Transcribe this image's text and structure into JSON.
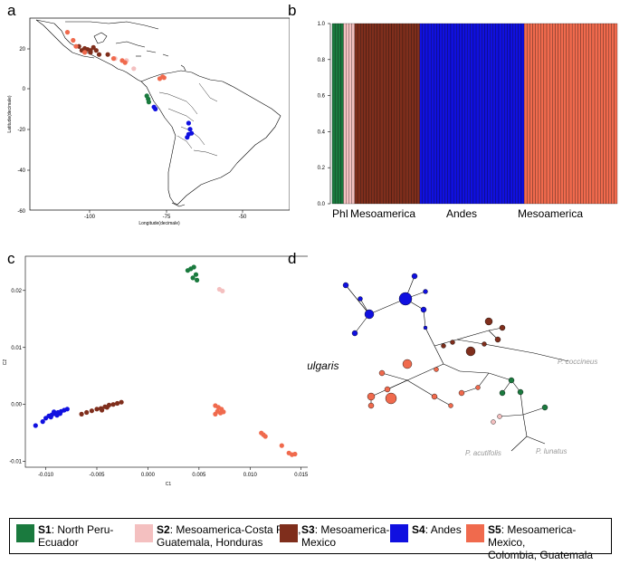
{
  "panels": {
    "a": "a",
    "b": "b",
    "c": "c",
    "d": "d"
  },
  "map": {
    "xlabel": "Longitude(decimale)",
    "ylabel": "Latitude(decimale)",
    "xticks": [
      "-100",
      "-75",
      "-50"
    ],
    "yticks": [
      "20",
      "0",
      "-20",
      "-40",
      "-60"
    ]
  },
  "structure": {
    "yticks": [
      "0.0",
      "0.2",
      "0.4",
      "0.6",
      "0.8",
      "1.0"
    ],
    "group_labels": [
      "PhI",
      "Mesoamerica",
      "Andes",
      "Mesoamerica"
    ]
  },
  "pca": {
    "xlabel": "C1",
    "ylabel": "C2",
    "xticks": [
      "-0.010",
      "-0.005",
      "0.000",
      "0.005",
      "0.010",
      "0.015"
    ],
    "yticks": [
      "0.02",
      "0.01",
      "0.00",
      "-0.01"
    ]
  },
  "network": {
    "main_label": "P. vulgaris",
    "outgroups": [
      "P. coccineus",
      "P. acutifolis",
      "P. lunatus"
    ]
  },
  "colors": {
    "S1": "#1a7a3e",
    "S2": "#f4c0c0",
    "S3": "#7f2e1c",
    "S4": "#1010e0",
    "S5": "#f06a4d"
  },
  "legend": [
    {
      "key": "S1",
      "code": "S1",
      "desc": ": North Peru-",
      "desc2": "Ecuador"
    },
    {
      "key": "S2",
      "code": "S2",
      "desc": ": Mesoamerica-Costa Rica,",
      "desc2": "Guatemala, Honduras"
    },
    {
      "key": "S3",
      "code": "S3",
      "desc": ": Mesoamerica-",
      "desc2": "Mexico"
    },
    {
      "key": "S4",
      "code": "S4",
      "desc": ": Andes",
      "desc2": ""
    },
    {
      "key": "S5",
      "code": "S5",
      "desc": ": Mesoamerica-Mexico,",
      "desc2": "Colombia, Guatemala"
    }
  ],
  "chart_data": [
    {
      "type": "scatter",
      "panel": "a",
      "xlabel": "Longitude(decimale)",
      "ylabel": "Latitude(decimale)",
      "xlim": [
        -120,
        -30
      ],
      "ylim": [
        -60,
        35
      ],
      "series": [
        {
          "group": "S1",
          "points": [
            [
              -79.5,
              -3.5
            ],
            [
              -79.0,
              -5.0
            ],
            [
              -78.8,
              -6.5
            ]
          ]
        },
        {
          "group": "S2",
          "points": [
            [
              -90.5,
              15.0
            ],
            [
              -84.0,
              10.0
            ],
            [
              -86.5,
              14.0
            ]
          ]
        },
        {
          "group": "S3",
          "points": [
            [
              -103,
              21
            ],
            [
              -101,
              20
            ],
            [
              -99,
              19
            ],
            [
              -97,
              19
            ],
            [
              -99,
              18
            ],
            [
              -96,
              17
            ],
            [
              -93,
              17
            ],
            [
              -100,
              19.5
            ],
            [
              -102,
              19
            ],
            [
              -98,
              20.5
            ]
          ]
        },
        {
          "group": "S4",
          "points": [
            [
              -77,
              -9
            ],
            [
              -76.5,
              -10
            ],
            [
              -65,
              -17
            ],
            [
              -64.5,
              -20
            ],
            [
              -64,
              -22
            ],
            [
              -65.5,
              -24
            ],
            [
              -65,
              -22.5
            ]
          ]
        },
        {
          "group": "S5",
          "points": [
            [
              -107,
              28
            ],
            [
              -105,
              24
            ],
            [
              -104,
              21
            ],
            [
              -101,
              18
            ],
            [
              -91,
              15
            ],
            [
              -88,
              14
            ],
            [
              -87,
              13
            ],
            [
              -74,
              6
            ],
            [
              -75,
              5
            ],
            [
              -73.5,
              5.5
            ]
          ]
        }
      ]
    },
    {
      "type": "bar",
      "panel": "b",
      "stacked": true,
      "ylim": [
        0,
        1.0
      ],
      "group_labels": [
        "PhI",
        "Mesoamerica",
        "Andes",
        "Mesoamerica"
      ],
      "series": [
        {
          "group": "S1",
          "individuals": 4,
          "membership": 1.0
        },
        {
          "group": "S2",
          "individuals": 4,
          "membership": 1.0
        },
        {
          "group": "S3",
          "individuals": 23,
          "membership": 1.0
        },
        {
          "group": "S4",
          "individuals": 37,
          "membership": 1.0
        },
        {
          "group": "S5",
          "individuals": 33,
          "membership": 1.0
        }
      ]
    },
    {
      "type": "scatter",
      "panel": "c",
      "xlabel": "C1",
      "ylabel": "C2",
      "xlim": [
        -0.012,
        0.016
      ],
      "ylim": [
        -0.011,
        0.026
      ],
      "series": [
        {
          "group": "S1",
          "points": [
            [
              0.0039,
              0.0235
            ],
            [
              0.0042,
              0.0238
            ],
            [
              0.0045,
              0.0241
            ],
            [
              0.0047,
              0.0228
            ],
            [
              0.0044,
              0.0222
            ],
            [
              0.0048,
              0.0218
            ]
          ]
        },
        {
          "group": "S2",
          "points": [
            [
              0.007,
              0.0202
            ],
            [
              0.0073,
              0.0199
            ]
          ]
        },
        {
          "group": "S3",
          "points": [
            [
              -0.0065,
              -0.0017
            ],
            [
              -0.006,
              -0.0014
            ],
            [
              -0.0055,
              -0.0011
            ],
            [
              -0.005,
              -0.0008
            ],
            [
              -0.0046,
              -0.0007
            ],
            [
              -0.0042,
              -0.0004
            ],
            [
              -0.0038,
              -0.0001
            ],
            [
              -0.0034,
              0.0
            ],
            [
              -0.003,
              0.0002
            ],
            [
              -0.0026,
              0.0004
            ],
            [
              -0.0045,
              -0.001
            ],
            [
              -0.004,
              -0.0005
            ]
          ]
        },
        {
          "group": "S4",
          "points": [
            [
              -0.011,
              -0.0037
            ],
            [
              -0.0103,
              -0.003
            ],
            [
              -0.01,
              -0.0024
            ],
            [
              -0.0097,
              -0.002
            ],
            [
              -0.0094,
              -0.0018
            ],
            [
              -0.0091,
              -0.0016
            ],
            [
              -0.0088,
              -0.0014
            ],
            [
              -0.0085,
              -0.0012
            ],
            [
              -0.0082,
              -0.001
            ],
            [
              -0.0079,
              -0.0008
            ],
            [
              -0.0095,
              -0.0022
            ],
            [
              -0.0089,
              -0.0019
            ],
            [
              -0.0086,
              -0.0016
            ],
            [
              -0.0092,
              -0.0013
            ]
          ]
        },
        {
          "group": "S5",
          "points": [
            [
              0.0066,
              -0.0002
            ],
            [
              0.0069,
              -0.0005
            ],
            [
              0.0072,
              -0.0008
            ],
            [
              0.0068,
              -0.0012
            ],
            [
              0.0071,
              -0.0015
            ],
            [
              0.0074,
              -0.0013
            ],
            [
              0.0066,
              -0.0017
            ],
            [
              0.0111,
              -0.005
            ],
            [
              0.0113,
              -0.0053
            ],
            [
              0.0115,
              -0.0056
            ],
            [
              0.0131,
              -0.0072
            ],
            [
              0.0138,
              -0.0085
            ],
            [
              0.0141,
              -0.0088
            ],
            [
              0.0144,
              -0.0087
            ]
          ]
        }
      ]
    }
  ]
}
